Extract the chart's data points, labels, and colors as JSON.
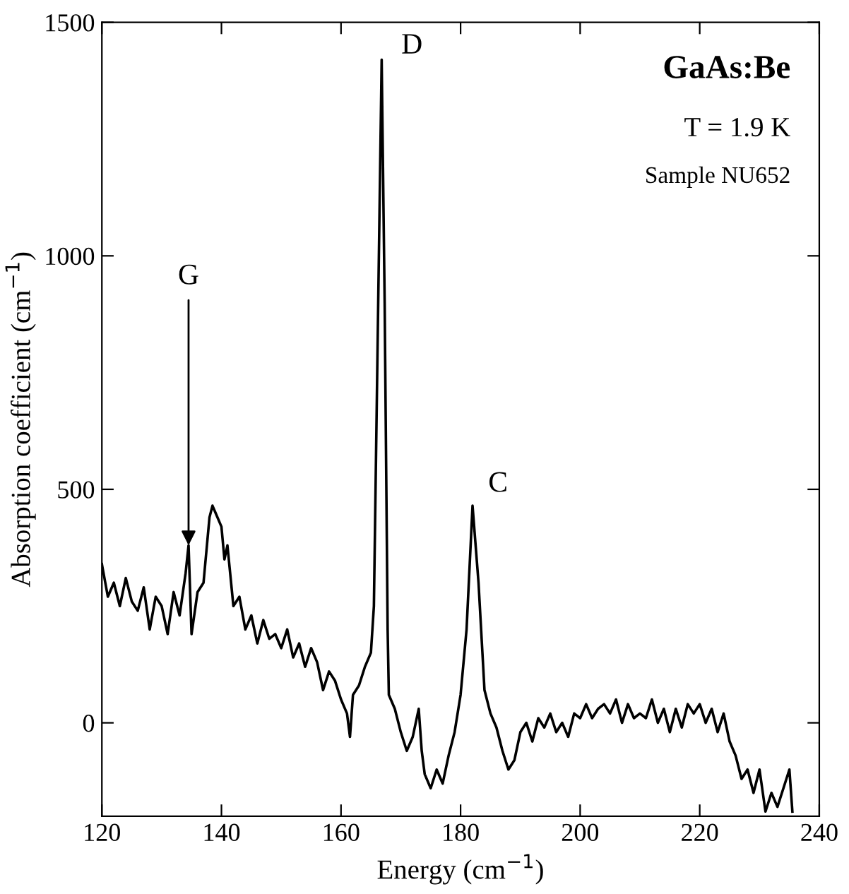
{
  "chart_data": {
    "type": "line",
    "title": "GaAs:Be",
    "xlabel": "Energy (cm$^{−1}$)",
    "ylabel": "Absorption coefficient (cm$^{−1}$)",
    "xlim": [
      120,
      240
    ],
    "ylim": [
      -200,
      1500
    ],
    "xticks": [
      120,
      140,
      160,
      180,
      200,
      220,
      240
    ],
    "yticks": [
      0,
      500,
      1000,
      1500
    ],
    "grid": false,
    "legend": false,
    "annotations": [
      "T = 1.9 K",
      "Sample NU652",
      {
        "text": "D",
        "x": 166.8,
        "y": 1420
      },
      {
        "text": "C",
        "x": 182,
        "y": 465
      },
      {
        "text": "G",
        "x": 134.5,
        "y": 380
      }
    ],
    "series": [
      {
        "color": "#000000",
        "x": [
          120,
          121,
          122,
          123,
          124,
          125,
          126,
          127,
          128,
          129,
          130,
          131,
          132,
          133,
          134,
          134.5,
          135,
          136,
          137,
          138,
          138.5,
          139,
          140,
          140.5,
          141,
          142,
          143,
          144,
          145,
          146,
          147,
          148,
          149,
          150,
          151,
          152,
          153,
          154,
          155,
          156,
          157,
          158,
          159,
          160,
          161,
          161.5,
          162,
          163,
          164,
          165,
          165.5,
          166,
          166.8,
          167.3,
          167.8,
          168,
          169,
          170,
          171,
          172,
          173,
          173.5,
          174,
          175,
          176,
          177,
          178,
          179,
          180,
          181,
          182,
          183,
          184,
          185,
          186,
          187,
          188,
          189,
          190,
          191,
          192,
          193,
          194,
          195,
          196,
          197,
          198,
          199,
          200,
          201,
          202,
          203,
          204,
          205,
          206,
          207,
          208,
          209,
          210,
          211,
          212,
          213,
          214,
          215,
          216,
          217,
          218,
          219,
          220,
          221,
          222,
          223,
          224,
          225,
          226,
          227,
          228,
          229,
          230,
          231,
          232,
          233,
          234,
          235,
          235.5
        ],
        "values": [
          340,
          270,
          300,
          250,
          310,
          260,
          240,
          290,
          200,
          270,
          250,
          190,
          280,
          230,
          320,
          380,
          190,
          280,
          300,
          440,
          465,
          450,
          420,
          350,
          380,
          250,
          270,
          200,
          230,
          170,
          220,
          180,
          190,
          160,
          200,
          140,
          170,
          120,
          160,
          130,
          70,
          110,
          90,
          50,
          20,
          -30,
          60,
          80,
          120,
          150,
          250,
          700,
          1420,
          900,
          200,
          60,
          30,
          -20,
          -60,
          -30,
          30,
          -60,
          -110,
          -140,
          -100,
          -130,
          -70,
          -20,
          60,
          200,
          465,
          300,
          70,
          20,
          -10,
          -60,
          -100,
          -80,
          -20,
          0,
          -40,
          10,
          -10,
          20,
          -20,
          0,
          -30,
          20,
          10,
          40,
          10,
          30,
          40,
          20,
          50,
          0,
          40,
          10,
          20,
          10,
          50,
          0,
          30,
          -20,
          30,
          -10,
          40,
          20,
          40,
          0,
          30,
          -20,
          20,
          -40,
          -70,
          -120,
          -100,
          -150,
          -100,
          -190,
          -150,
          -180,
          -140,
          -100,
          -190
        ]
      }
    ]
  }
}
